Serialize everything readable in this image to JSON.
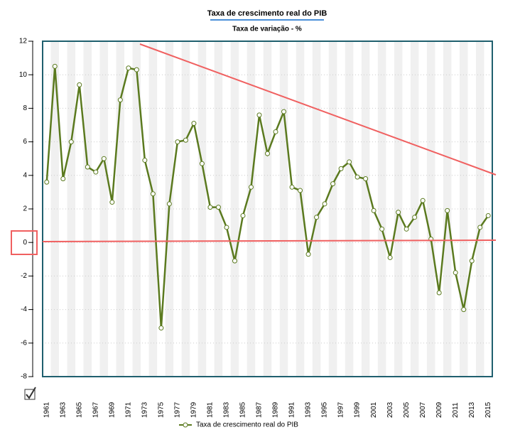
{
  "chart_data": {
    "type": "line",
    "title": "Taxa de crescimento real do PIB",
    "subtitle": "Taxa de variação - %",
    "categories": [
      "1961",
      null,
      "1963",
      null,
      "1965",
      null,
      "1967",
      null,
      "1969",
      null,
      "1971",
      null,
      "1973",
      null,
      "1975",
      null,
      "1977",
      null,
      "1979",
      null,
      "1981",
      null,
      "1983",
      null,
      "1985",
      null,
      "1987",
      null,
      "1989",
      null,
      "1991",
      null,
      "1993",
      null,
      "1995",
      null,
      "1997",
      null,
      "1999",
      null,
      "2001",
      null,
      "2003",
      null,
      "2005",
      null,
      "2007",
      null,
      "2009",
      null,
      "2011",
      null,
      "2013",
      null,
      "2015"
    ],
    "series": [
      {
        "name": "Taxa de crescimento real do PIB",
        "color": "#5b7a1f",
        "values": [
          3.6,
          10.5,
          3.8,
          6.0,
          9.4,
          4.5,
          4.2,
          5.0,
          2.4,
          8.5,
          10.4,
          10.3,
          4.9,
          2.9,
          -5.1,
          2.3,
          6.0,
          6.1,
          7.1,
          4.7,
          2.1,
          2.1,
          0.9,
          -1.1,
          1.6,
          3.3,
          7.6,
          5.3,
          6.6,
          7.8,
          3.3,
          3.1,
          -0.7,
          1.5,
          2.3,
          3.5,
          4.4,
          4.8,
          3.9,
          3.8,
          1.9,
          0.8,
          -0.9,
          1.8,
          0.8,
          1.5,
          2.5,
          0.2,
          -3.0,
          1.9,
          -1.8,
          -4.0,
          -1.1,
          0.9,
          1.6
        ]
      }
    ],
    "ylim": [
      -8,
      12
    ],
    "yticks": [
      -8,
      -6,
      -4,
      -2,
      0,
      2,
      4,
      6,
      8,
      10,
      12
    ],
    "grid": true,
    "legend": "bottom"
  }
}
